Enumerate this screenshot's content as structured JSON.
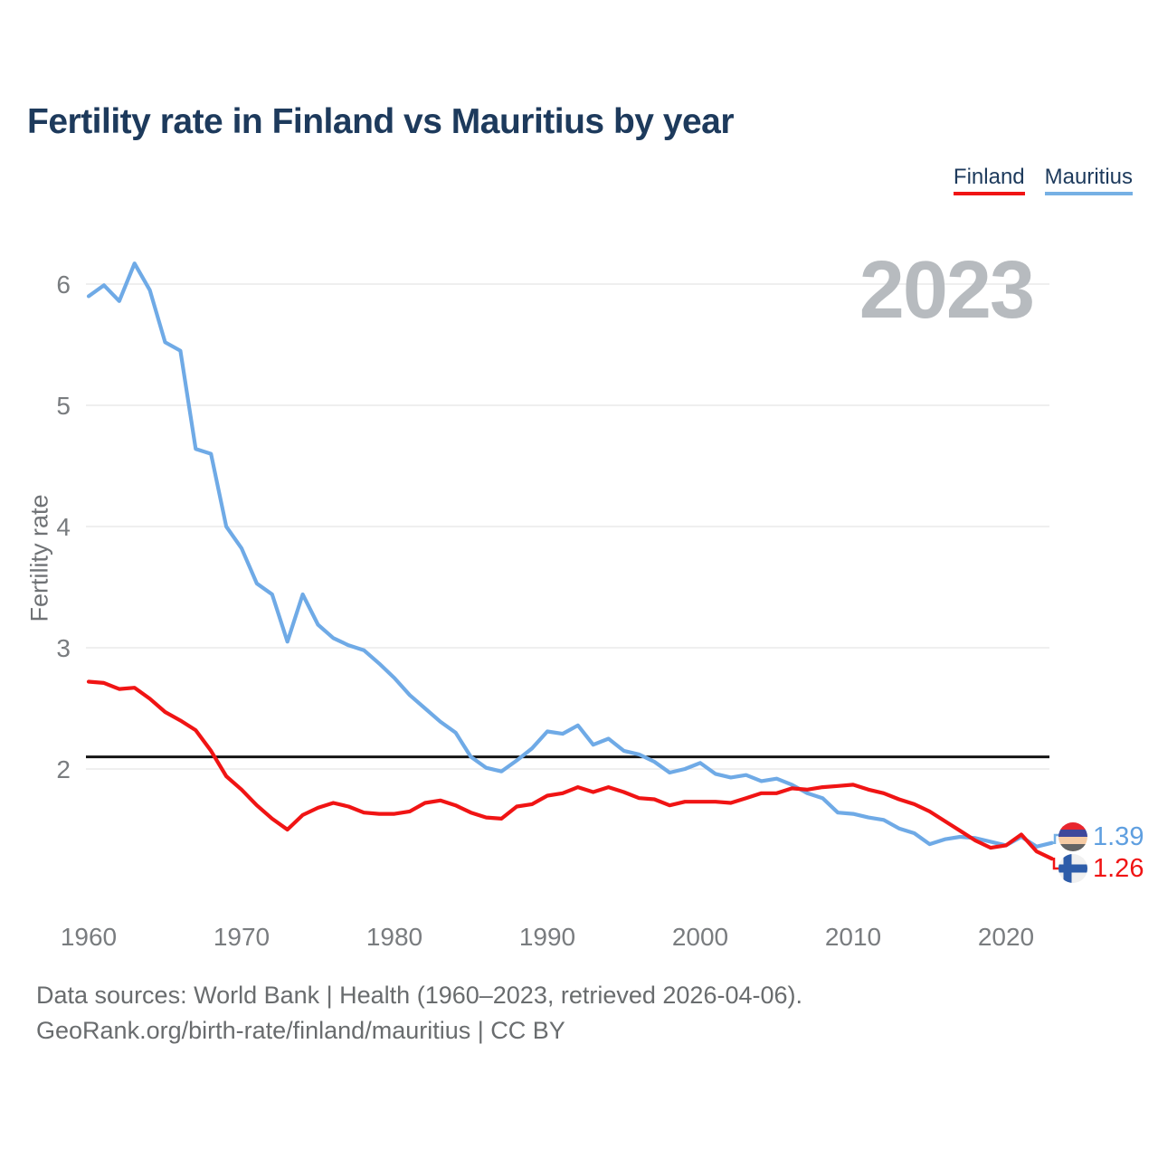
{
  "header": {
    "title": "Fertility rate in Finland vs Mauritius by year"
  },
  "legend": [
    {
      "label": "Finland",
      "color": "#f01414"
    },
    {
      "label": "Mauritius",
      "color": "#76b0e4"
    }
  ],
  "watermark": {
    "text": "2023"
  },
  "chart_data": {
    "type": "line",
    "title": "Fertility rate in Finland vs Mauritius by year",
    "xlabel": "",
    "ylabel": "Fertility rate",
    "x_start": 1960,
    "x_end": 2023,
    "x_ticks": [
      1960,
      1970,
      1980,
      1990,
      2000,
      2010,
      2020
    ],
    "y_ticks": [
      2,
      3,
      4,
      5,
      6
    ],
    "ylim": [
      0.9,
      6.35
    ],
    "grid": "horizontal",
    "legend_position": "top-right",
    "reference_line": {
      "value": 2.1,
      "color": "#141414"
    },
    "series": [
      {
        "name": "Finland",
        "color": "#f01414",
        "end_label": "1.26",
        "flag_icon": "finland-flag-icon",
        "values": [
          2.72,
          2.71,
          2.66,
          2.67,
          2.58,
          2.47,
          2.4,
          2.32,
          2.15,
          1.94,
          1.83,
          1.7,
          1.59,
          1.5,
          1.62,
          1.68,
          1.72,
          1.69,
          1.64,
          1.63,
          1.63,
          1.65,
          1.72,
          1.74,
          1.7,
          1.64,
          1.6,
          1.59,
          1.69,
          1.71,
          1.78,
          1.8,
          1.85,
          1.81,
          1.85,
          1.81,
          1.76,
          1.75,
          1.7,
          1.73,
          1.73,
          1.73,
          1.72,
          1.76,
          1.8,
          1.8,
          1.84,
          1.83,
          1.85,
          1.86,
          1.87,
          1.83,
          1.8,
          1.75,
          1.71,
          1.65,
          1.57,
          1.49,
          1.41,
          1.35,
          1.37,
          1.46,
          1.32,
          1.26
        ]
      },
      {
        "name": "Mauritius",
        "color": "#6faae6",
        "end_label": "1.39",
        "flag_icon": "mauritius-flag-icon",
        "values": [
          5.9,
          5.99,
          5.86,
          6.17,
          5.95,
          5.52,
          5.45,
          4.64,
          4.6,
          4.0,
          3.82,
          3.53,
          3.44,
          3.05,
          3.44,
          3.19,
          3.08,
          3.02,
          2.98,
          2.87,
          2.75,
          2.61,
          2.5,
          2.39,
          2.3,
          2.1,
          2.01,
          1.98,
          2.07,
          2.17,
          2.31,
          2.29,
          2.36,
          2.2,
          2.25,
          2.15,
          2.12,
          2.06,
          1.97,
          2.0,
          2.05,
          1.96,
          1.93,
          1.95,
          1.9,
          1.92,
          1.87,
          1.8,
          1.76,
          1.64,
          1.63,
          1.6,
          1.58,
          1.51,
          1.47,
          1.38,
          1.42,
          1.44,
          1.43,
          1.4,
          1.37,
          1.44,
          1.36,
          1.39
        ]
      }
    ]
  },
  "footer": {
    "line1": "Data sources: World Bank | Health (1960–2023, retrieved 2026-04-06).",
    "line2": "GeoRank.org/birth-rate/finland/mauritius | CC BY"
  }
}
